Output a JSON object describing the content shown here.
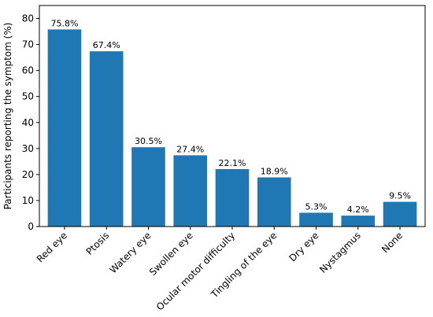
{
  "chart_data": {
    "type": "bar",
    "title": "",
    "xlabel": "",
    "ylabel": "Participants reporting the symptom (%)",
    "ylim": [
      0,
      85
    ],
    "yticks": [
      0,
      10,
      20,
      30,
      40,
      50,
      60,
      70,
      80
    ],
    "grid": false,
    "categories": [
      "Red eye",
      "Ptosis",
      "Watery eye",
      "Swollen eye",
      "Ocular motor difficulty",
      "Tingling of the eye",
      "Dry eye",
      "Nystagmus",
      "None"
    ],
    "values": [
      75.8,
      67.4,
      30.5,
      27.4,
      22.1,
      18.9,
      5.3,
      4.2,
      9.5
    ],
    "data_labels": [
      "75.8%",
      "67.4%",
      "30.5%",
      "27.4%",
      "22.1%",
      "18.9%",
      "5.3%",
      "4.2%",
      "9.5%"
    ],
    "bar_color": "#1f77b4"
  }
}
